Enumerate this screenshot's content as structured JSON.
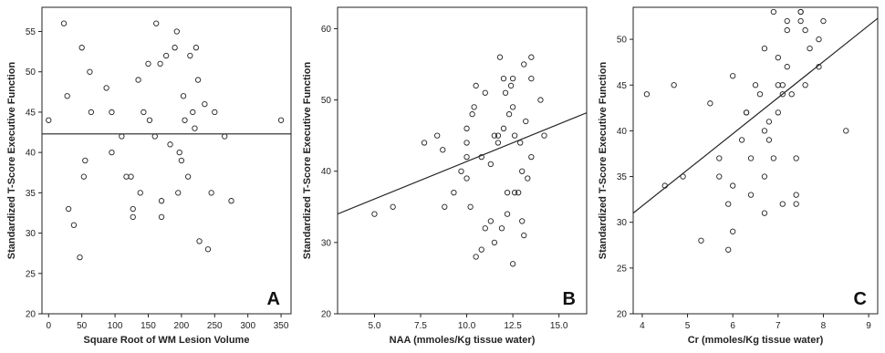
{
  "figure": {
    "panel_letters": [
      "A",
      "B",
      "C"
    ]
  },
  "chart_data": [
    {
      "type": "scatter",
      "panel": "A",
      "xlabel": "Square Root of WM Lesion Volume",
      "ylabel": "Standardized T-Score Executive Function",
      "xlim": [
        -10,
        365
      ],
      "ylim": [
        20,
        58
      ],
      "xticks": [
        0,
        50,
        100,
        150,
        200,
        250,
        300,
        350
      ],
      "yticks": [
        20,
        25,
        30,
        35,
        40,
        45,
        50,
        55
      ],
      "grid": false,
      "fit_line": {
        "x": [
          -10,
          365
        ],
        "y": [
          42.3,
          42.3
        ]
      },
      "points": [
        [
          0,
          44
        ],
        [
          23,
          56
        ],
        [
          28,
          47
        ],
        [
          30,
          33
        ],
        [
          38,
          31
        ],
        [
          47,
          27
        ],
        [
          50,
          53
        ],
        [
          53,
          37
        ],
        [
          55,
          39
        ],
        [
          62,
          50
        ],
        [
          64,
          45
        ],
        [
          87,
          48
        ],
        [
          95,
          45
        ],
        [
          95,
          40
        ],
        [
          110,
          42
        ],
        [
          117,
          37
        ],
        [
          124,
          37
        ],
        [
          127,
          33
        ],
        [
          127,
          32
        ],
        [
          135,
          49
        ],
        [
          138,
          35
        ],
        [
          143,
          45
        ],
        [
          150,
          51
        ],
        [
          152,
          44
        ],
        [
          160,
          42
        ],
        [
          162,
          56
        ],
        [
          168,
          51
        ],
        [
          170,
          34
        ],
        [
          170,
          32
        ],
        [
          177,
          52
        ],
        [
          183,
          41
        ],
        [
          190,
          53
        ],
        [
          193,
          55
        ],
        [
          195,
          35
        ],
        [
          197,
          40
        ],
        [
          200,
          39
        ],
        [
          203,
          47
        ],
        [
          205,
          44
        ],
        [
          210,
          37
        ],
        [
          213,
          52
        ],
        [
          217,
          45
        ],
        [
          220,
          43
        ],
        [
          222,
          53
        ],
        [
          225,
          49
        ],
        [
          227,
          29
        ],
        [
          235,
          46
        ],
        [
          240,
          28
        ],
        [
          245,
          35
        ],
        [
          250,
          45
        ],
        [
          265,
          42
        ],
        [
          275,
          34
        ],
        [
          350,
          44
        ]
      ]
    },
    {
      "type": "scatter",
      "panel": "B",
      "xlabel": "NAA (mmoles/Kg tissue water)",
      "ylabel": "Standardized T-Score Executive Function",
      "xlim": [
        3.0,
        16.5
      ],
      "ylim": [
        20,
        63
      ],
      "xticks": [
        5.0,
        7.5,
        10.0,
        12.5,
        15.0
      ],
      "yticks": [
        20,
        30,
        40,
        50,
        60
      ],
      "grid": false,
      "fit_line": {
        "x": [
          3.0,
          16.5
        ],
        "y": [
          34.0,
          48.2
        ]
      },
      "points": [
        [
          5.0,
          34
        ],
        [
          6.0,
          35
        ],
        [
          7.7,
          44
        ],
        [
          8.4,
          45
        ],
        [
          8.7,
          43
        ],
        [
          8.8,
          35
        ],
        [
          9.3,
          37
        ],
        [
          9.7,
          40
        ],
        [
          10.0,
          39
        ],
        [
          10.0,
          42
        ],
        [
          10.0,
          44
        ],
        [
          10.0,
          46
        ],
        [
          10.2,
          35
        ],
        [
          10.3,
          48
        ],
        [
          10.4,
          49
        ],
        [
          10.5,
          52
        ],
        [
          10.5,
          28
        ],
        [
          10.8,
          29
        ],
        [
          10.8,
          42
        ],
        [
          11.0,
          51
        ],
        [
          11.0,
          32
        ],
        [
          11.3,
          33
        ],
        [
          11.3,
          41
        ],
        [
          11.5,
          45
        ],
        [
          11.5,
          30
        ],
        [
          11.7,
          45
        ],
        [
          11.7,
          44
        ],
        [
          11.8,
          56
        ],
        [
          11.9,
          32
        ],
        [
          12.0,
          53
        ],
        [
          12.0,
          46
        ],
        [
          12.1,
          51
        ],
        [
          12.2,
          37
        ],
        [
          12.2,
          34
        ],
        [
          12.3,
          48
        ],
        [
          12.4,
          52
        ],
        [
          12.5,
          53
        ],
        [
          12.5,
          49
        ],
        [
          12.6,
          45
        ],
        [
          12.6,
          37
        ],
        [
          12.5,
          27
        ],
        [
          12.8,
          37
        ],
        [
          12.9,
          44
        ],
        [
          13.0,
          40
        ],
        [
          13.0,
          33
        ],
        [
          13.1,
          55
        ],
        [
          13.1,
          31
        ],
        [
          13.2,
          47
        ],
        [
          13.3,
          39
        ],
        [
          13.5,
          56
        ],
        [
          13.5,
          53
        ],
        [
          13.5,
          42
        ],
        [
          14.0,
          50
        ],
        [
          14.2,
          45
        ]
      ]
    },
    {
      "type": "scatter",
      "panel": "C",
      "xlabel": "Cr (mmoles/Kg tissue water)",
      "ylabel": "Standardized T-Score Executive Function",
      "xlim": [
        3.8,
        9.2
      ],
      "ylim": [
        20,
        53.5
      ],
      "xticks": [
        4,
        5,
        6,
        7,
        8,
        9
      ],
      "yticks": [
        20,
        25,
        30,
        35,
        40,
        45,
        50
      ],
      "grid": false,
      "fit_line": {
        "x": [
          3.8,
          9.2
        ],
        "y": [
          31.0,
          52.3
        ]
      },
      "points": [
        [
          4.1,
          44
        ],
        [
          4.5,
          34
        ],
        [
          4.7,
          45
        ],
        [
          4.9,
          35
        ],
        [
          5.3,
          28
        ],
        [
          5.5,
          43
        ],
        [
          5.7,
          37
        ],
        [
          5.7,
          35
        ],
        [
          5.9,
          27
        ],
        [
          5.9,
          32
        ],
        [
          6.0,
          46
        ],
        [
          6.0,
          29
        ],
        [
          6.0,
          34
        ],
        [
          6.2,
          39
        ],
        [
          6.3,
          42
        ],
        [
          6.3,
          42
        ],
        [
          6.4,
          37
        ],
        [
          6.4,
          33
        ],
        [
          6.5,
          45
        ],
        [
          6.6,
          44
        ],
        [
          6.7,
          49
        ],
        [
          6.7,
          35
        ],
        [
          6.7,
          31
        ],
        [
          6.7,
          40
        ],
        [
          6.8,
          41
        ],
        [
          6.8,
          39
        ],
        [
          6.9,
          53
        ],
        [
          6.9,
          37
        ],
        [
          7.0,
          45
        ],
        [
          7.0,
          42
        ],
        [
          7.0,
          48
        ],
        [
          7.1,
          44
        ],
        [
          7.1,
          32
        ],
        [
          7.1,
          45
        ],
        [
          7.2,
          51
        ],
        [
          7.2,
          47
        ],
        [
          7.2,
          52
        ],
        [
          7.3,
          44
        ],
        [
          7.4,
          37
        ],
        [
          7.4,
          33
        ],
        [
          7.4,
          32
        ],
        [
          7.5,
          53
        ],
        [
          7.5,
          53
        ],
        [
          7.5,
          52
        ],
        [
          7.6,
          51
        ],
        [
          7.6,
          45
        ],
        [
          7.7,
          49
        ],
        [
          7.9,
          47
        ],
        [
          7.9,
          50
        ],
        [
          8.0,
          52
        ],
        [
          8.5,
          40
        ]
      ]
    }
  ]
}
